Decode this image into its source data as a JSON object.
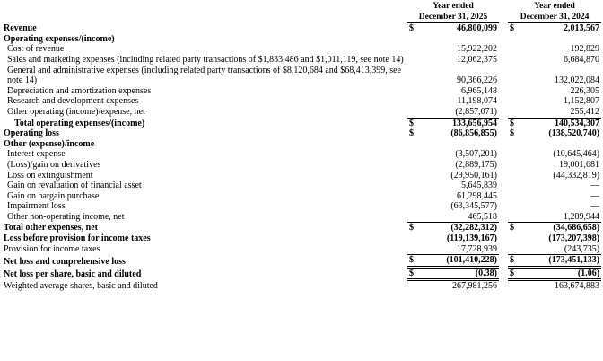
{
  "header": {
    "col_2025": [
      "Year ended",
      "December 31, 2025"
    ],
    "col_2024": [
      "Year ended",
      "December 31, 2024"
    ]
  },
  "rows": [
    {
      "label": "Revenue",
      "cur_2025": "$",
      "amount_2025": "46,800,099",
      "cur_2024": "$",
      "amount_2024": "2,013,567"
    },
    {
      "label": "Operating expenses/(income)"
    },
    {
      "label": "Cost of revenue",
      "amount_2025": "15,922,202",
      "amount_2024": "192,829"
    },
    {
      "label": "Sales and marketing expenses (including related party transactions of $1,833,486 and $1,011,119, see note 14)",
      "amount_2025": "12,062,375",
      "amount_2024": "6,684,870"
    },
    {
      "label": "General and administrative expenses (including related party transactions of $8,120,684 and $68,413,399, see note 14)",
      "amount_2025": "90,366,226",
      "amount_2024": "132,022,084"
    },
    {
      "label": "Depreciation and amortization expenses",
      "amount_2025": "6,965,148",
      "amount_2024": "226,305"
    },
    {
      "label": "Research and development expenses",
      "amount_2025": "11,198,074",
      "amount_2024": "1,152,807"
    },
    {
      "label": "Other operating (income)/expense, net",
      "amount_2025": "(2,857,071)",
      "amount_2024": "255,412"
    },
    {
      "label": "Total operating expenses/(income)",
      "cur_2025": "$",
      "amount_2025": "133,656,954",
      "cur_2024": "$",
      "amount_2024": "140,534,307"
    },
    {
      "label": "Operating loss",
      "cur_2025": "$",
      "amount_2025": "(86,856,855)",
      "cur_2024": "$",
      "amount_2024": "(138,520,740)"
    },
    {
      "label": "Other (expense)/income"
    },
    {
      "label": "Interest expense",
      "amount_2025": "(3,507,201)",
      "amount_2024": "(10,645,464)"
    },
    {
      "label": "(Loss)/gain on derivatives",
      "amount_2025": "(2,889,175)",
      "amount_2024": "19,001,681"
    },
    {
      "label": "Loss on extinguishment",
      "amount_2025": "(29,950,161)",
      "amount_2024": "(44,332,819)"
    },
    {
      "label": "Gain on revaluation of financial asset",
      "amount_2025": "5,645,839",
      "amount_2024": "—"
    },
    {
      "label": "Gain on bargain purchase",
      "amount_2025": "61,298,445",
      "amount_2024": "—"
    },
    {
      "label": "Impairment loss",
      "amount_2025": "(63,345,577)",
      "amount_2024": "—"
    },
    {
      "label": "Other non-operating income, net",
      "amount_2025": "465,518",
      "amount_2024": "1,289,944"
    },
    {
      "label": "Total other expenses, net",
      "cur_2025": "$",
      "amount_2025": "(32,282,312)",
      "cur_2024": "$",
      "amount_2024": "(34,686,658)"
    },
    {
      "label": "Loss before provision for income taxes",
      "amount_2025": "(119,139,167)",
      "amount_2024": "(173,207,398)"
    },
    {
      "label": "Provision for income taxes",
      "amount_2025": "17,728,939",
      "amount_2024": "(243,735)"
    },
    {
      "label": "Net loss and comprehensive loss",
      "cur_2025": "$",
      "amount_2025": "(101,410,228)",
      "cur_2024": "$",
      "amount_2024": "(173,451,133)"
    },
    {
      "label": "Net loss per share, basic and diluted",
      "cur_2025": "$",
      "amount_2025": "(0.38)",
      "cur_2024": "$",
      "amount_2024": "(1.06)"
    },
    {
      "label": "Weighted average shares, basic and diluted",
      "amount_2025": "267,981,256",
      "amount_2024": "163,674,883"
    }
  ]
}
